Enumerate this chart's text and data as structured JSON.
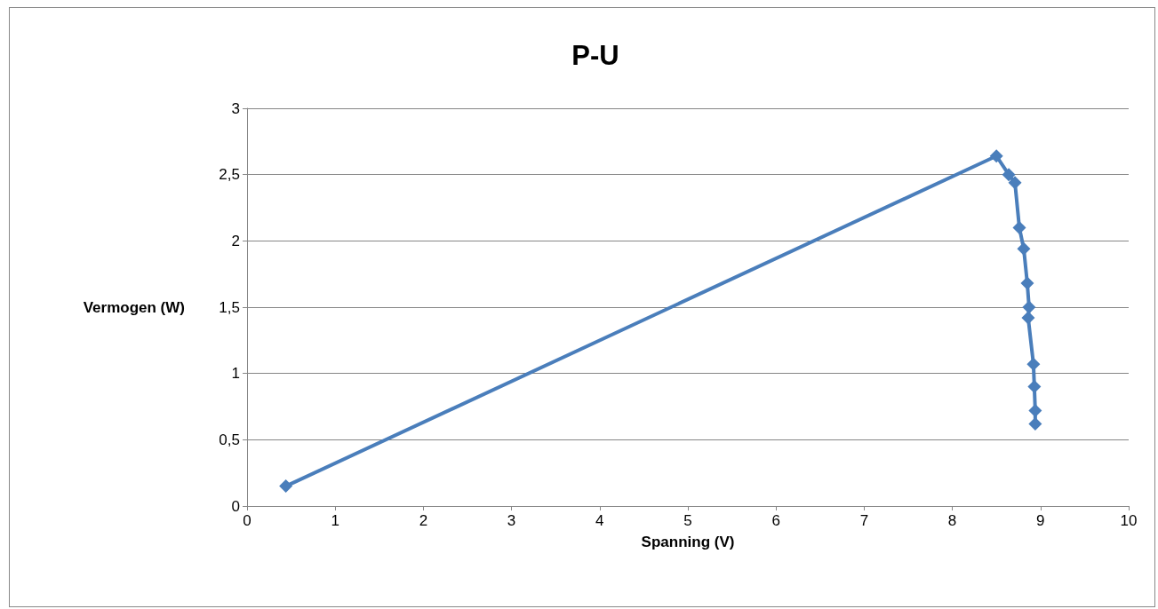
{
  "chart_data": {
    "type": "line",
    "title": "P-U",
    "xlabel": "Spanning (V)",
    "ylabel": "Vermogen (W)",
    "series": [
      {
        "color": "#4a7ebb",
        "x": [
          0.44,
          8.5,
          8.64,
          8.71,
          8.76,
          8.81,
          8.85,
          8.87,
          8.86,
          8.92,
          8.93,
          8.94,
          8.94
        ],
        "values": [
          0.15,
          2.64,
          2.5,
          2.44,
          2.1,
          1.94,
          1.68,
          1.5,
          1.42,
          1.07,
          0.9,
          0.72,
          0.62
        ]
      }
    ],
    "xlim": [
      0,
      10
    ],
    "xticks": [
      0,
      1,
      2,
      3,
      4,
      5,
      6,
      7,
      8,
      9,
      10
    ],
    "ylim": [
      0,
      3
    ],
    "yticks": [
      {
        "value": 0,
        "label": "0"
      },
      {
        "value": 0.5,
        "label": "0,5"
      },
      {
        "value": 1,
        "label": "1"
      },
      {
        "value": 1.5,
        "label": "1,5"
      },
      {
        "value": 2,
        "label": "2"
      },
      {
        "value": 2.5,
        "label": "2,5"
      },
      {
        "value": 3,
        "label": "3"
      }
    ],
    "grid": "y",
    "marker": "diamond",
    "line_style": "solid"
  }
}
